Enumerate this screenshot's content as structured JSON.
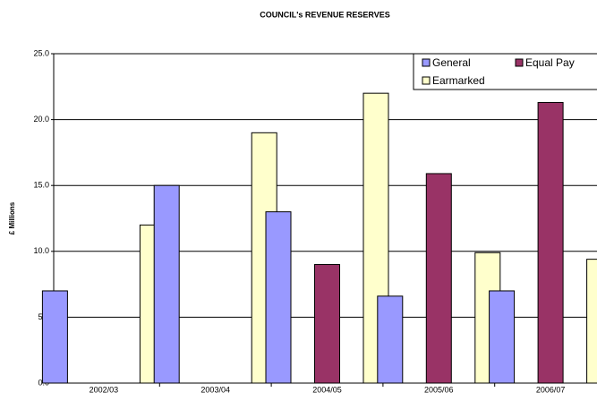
{
  "chart_data": {
    "type": "bar",
    "title": "COUNCIL's REVENUE RESERVES",
    "y_label": "£ Millions",
    "categories": [
      "2002/03",
      "2003/04",
      "2004/05",
      "2005/06",
      "2006/07"
    ],
    "series": [
      {
        "name": "General",
        "color": "#9999ff",
        "values": [
          7.0,
          15.0,
          13.0,
          6.6,
          7.0
        ]
      },
      {
        "name": "Equal Pay",
        "color": "#993366",
        "values": [
          null,
          null,
          9.0,
          15.9,
          21.3
        ]
      },
      {
        "name": "Earmarked",
        "color": "#ffffcc",
        "values": [
          12.0,
          19.0,
          22.0,
          9.9,
          9.4
        ]
      }
    ],
    "ylim": [
      0,
      25
    ],
    "yticks": [
      {
        "value": 0,
        "label": "0.0"
      },
      {
        "value": 5,
        "label": "5.0"
      },
      {
        "value": 10,
        "label": "10.0"
      },
      {
        "value": 15,
        "label": "15.0"
      },
      {
        "value": 20,
        "label": "20.0"
      },
      {
        "value": 25,
        "label": "25.0"
      }
    ],
    "grid": true,
    "legend": "upper right"
  }
}
